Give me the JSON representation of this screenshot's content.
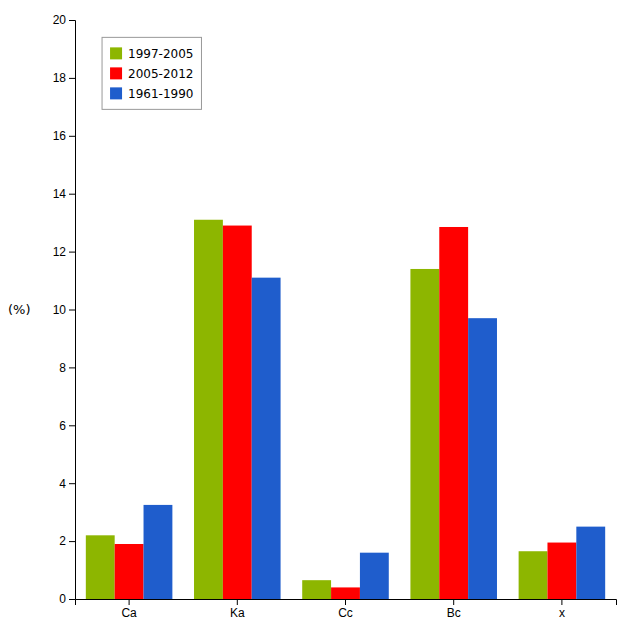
{
  "chart_data": {
    "type": "bar",
    "ylabel": "(%)",
    "categories": [
      "Ca",
      "Ka",
      "Cc",
      "Bc",
      "x"
    ],
    "series": [
      {
        "name": "1997-2005",
        "color": "#8DB600",
        "values": [
          2.2,
          13.1,
          0.65,
          11.4,
          1.65
        ]
      },
      {
        "name": "2005-2012",
        "color": "#FF0000",
        "values": [
          1.9,
          12.9,
          0.4,
          12.85,
          1.95
        ]
      },
      {
        "name": "1961-1990",
        "color": "#1F5DCC",
        "values": [
          3.25,
          11.1,
          1.6,
          9.7,
          2.5
        ]
      }
    ],
    "ylim": [
      0,
      20
    ],
    "yticks": [
      0,
      2,
      4,
      6,
      8,
      10,
      12,
      14,
      16,
      18,
      20
    ],
    "grid": false,
    "legend": "upper left"
  }
}
